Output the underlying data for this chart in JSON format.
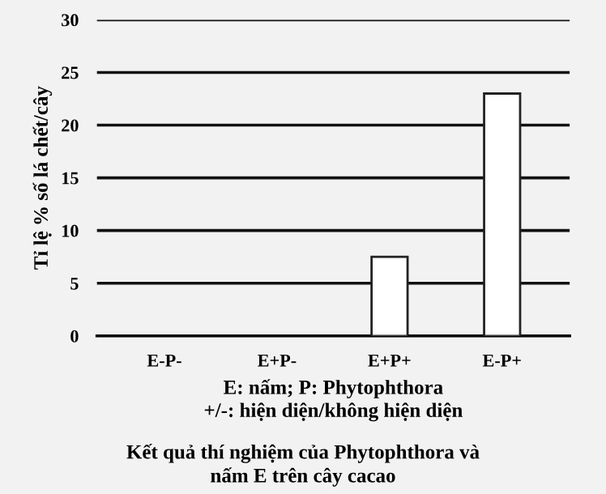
{
  "chart_data": {
    "type": "bar",
    "categories": [
      "E-P-",
      "E+P-",
      "E+P+",
      "E-P+"
    ],
    "values": [
      0,
      0,
      7.5,
      23
    ],
    "color": "#ffffff",
    "ylabel": "Tỉ lệ % số lá chết/cây",
    "xlabel": "E: nấm; P: Phytophthora\n+/-: hiện diện/không hiện diện",
    "annotations": [
      "Kết quả thí nghiệm của Phytophthora và\nnấm E trên cây cacao"
    ],
    "ylim": [
      0,
      30
    ],
    "yticks": [
      0,
      5,
      10,
      15,
      20,
      25,
      30
    ],
    "grid": "y"
  }
}
